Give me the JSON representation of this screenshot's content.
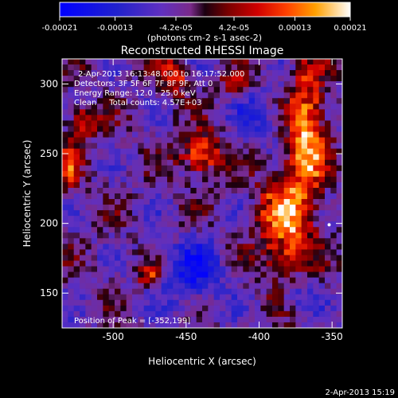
{
  "chart_data": {
    "type": "heatmap",
    "title": "Reconstructed RHESSI Image",
    "xlabel": "Heliocentric X (arcsec)",
    "ylabel": "Heliocentric Y (arcsec)",
    "xlim": [
      -535,
      -343
    ],
    "ylim": [
      125,
      318
    ],
    "xticks": [
      -500,
      -450,
      -400,
      -350
    ],
    "yticks": [
      150,
      200,
      250,
      300
    ],
    "colorbar": {
      "ticks": [
        "-0.00021",
        "-0.00013",
        "-4.2e-05",
        "4.2e-05",
        "0.00013",
        "0.00021"
      ],
      "tick_values": [
        -0.00021,
        -0.00013,
        -4.2e-05,
        4.2e-05,
        0.00013,
        0.00021
      ],
      "range": [
        -0.00021,
        0.00021
      ],
      "unit_label": "(photons cm-2 s-1 asec-2)"
    },
    "annotations": {
      "time_range": "2-Apr-2013 16:13:48.000 to 16:17:52.000",
      "detectors": "Detectors: 3F 5F 6F 7F 8F 9F, Att 0",
      "energy": "Energy Range: 12.0 - 25.0 keV",
      "clean": "Clean     Total counts: 4.57E+03",
      "peak": "Position of Peak = [-352,199]"
    },
    "peak": {
      "x": -352,
      "y": 199
    },
    "emission_regions": [
      {
        "x": -367,
        "y": 265,
        "width": 12,
        "height": 45,
        "amplitude": 0.00021
      },
      {
        "x": -382,
        "y": 198,
        "width": 18,
        "height": 40,
        "amplitude": 0.00018
      },
      {
        "x": -440,
        "y": 250,
        "width": 14,
        "height": 14,
        "amplitude": 0.00019
      },
      {
        "x": -458,
        "y": 305,
        "width": 10,
        "height": 12,
        "amplitude": 0.00014
      },
      {
        "x": -520,
        "y": 272,
        "width": 10,
        "height": 10,
        "amplitude": 0.00015
      },
      {
        "x": -530,
        "y": 240,
        "width": 8,
        "height": 18,
        "amplitude": 0.00012
      },
      {
        "x": -475,
        "y": 162,
        "width": 8,
        "height": 8,
        "amplitude": 0.00012
      },
      {
        "x": -415,
        "y": 300,
        "width": 10,
        "height": 8,
        "amplitude": 8e-05
      }
    ]
  },
  "timestamp": "2-Apr-2013 15:19"
}
